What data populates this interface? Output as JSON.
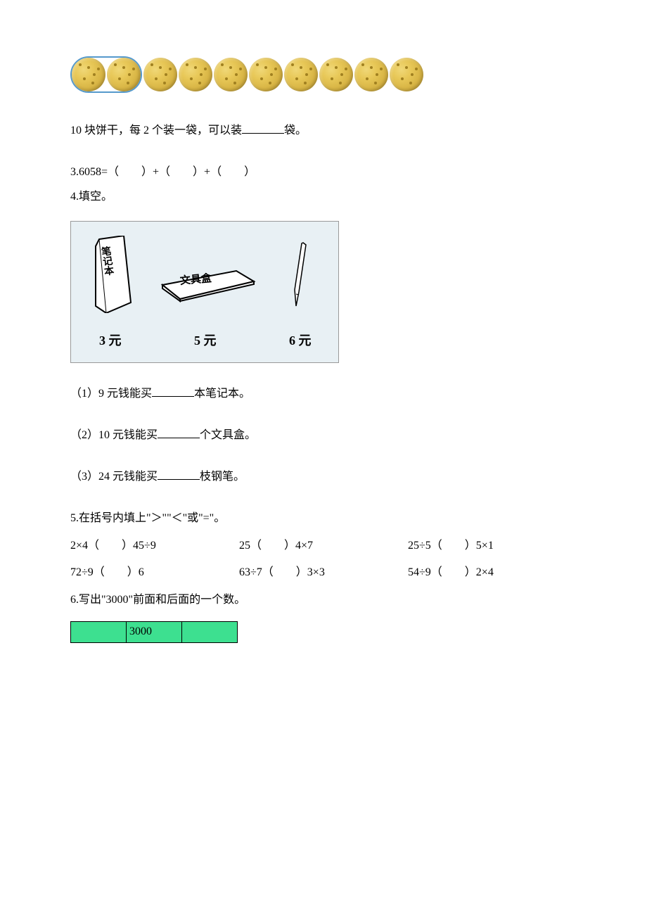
{
  "cookies": {
    "total": 10,
    "grouped": 2,
    "cookie_color": "#e8c858",
    "spot_color": "#a08020",
    "group_border_color": "#5599cc"
  },
  "q_cookies": {
    "prefix": "10 块饼干，每 2 个装一袋，可以装",
    "suffix": "袋。"
  },
  "q3": {
    "label": "3.",
    "expr": "6058=（　　）+（　　）+（　　）"
  },
  "q4": {
    "label": "4.",
    "title": "填空。",
    "items": {
      "notebook": {
        "label": "笔记本",
        "price": "3 元"
      },
      "pencilcase": {
        "label": "文具盒",
        "price": "5 元"
      },
      "pen": {
        "label": "",
        "price": "6 元"
      }
    },
    "box_bg": "#e8f0f4",
    "subs": [
      {
        "n": "（1）",
        "pre": "9 元钱能买",
        "post": "本笔记本。"
      },
      {
        "n": "（2）",
        "pre": "10 元钱能买",
        "post": "个文具盒。"
      },
      {
        "n": "（3）",
        "pre": "24 元钱能买",
        "post": "枝钢笔。"
      }
    ]
  },
  "q5": {
    "label": "5.",
    "title": "在括号内填上\"＞\"\"＜\"或\"=\"。",
    "rows": [
      [
        {
          "l": "2×4",
          "r": "45÷9"
        },
        {
          "l": "25",
          "r": "4×7"
        },
        {
          "l": "25÷5",
          "r": "5×1"
        }
      ],
      [
        {
          "l": "72÷9",
          "r": "6"
        },
        {
          "l": "63÷7",
          "r": "3×3"
        },
        {
          "l": "54÷9",
          "r": "2×4"
        }
      ]
    ]
  },
  "q6": {
    "label": "6.",
    "title": "写出\"3000\"前面和后面的一个数。",
    "table_bg": "#3de090",
    "cells": [
      "",
      "3000",
      ""
    ]
  }
}
